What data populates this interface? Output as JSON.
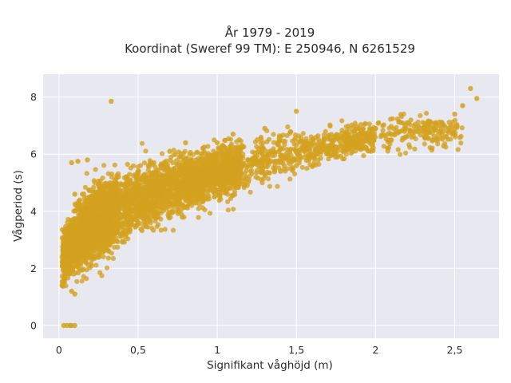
{
  "chart_data": {
    "type": "scatter",
    "title_line1": "År 1979 - 2019",
    "title_line2": "Koordinat (Sweref 99 TM): E 250946, N 6261529",
    "xlabel": "Signifikant våghöjd (m)",
    "ylabel": "Vågperiod (s)",
    "xlim": [
      -0.1,
      2.78
    ],
    "ylim": [
      -0.45,
      8.8
    ],
    "x_ticks": [
      {
        "value": 0,
        "label": "0"
      },
      {
        "value": 0.5,
        "label": "0,5"
      },
      {
        "value": 1,
        "label": "1"
      },
      {
        "value": 1.5,
        "label": "1,5"
      },
      {
        "value": 2,
        "label": "2"
      },
      {
        "value": 2.5,
        "label": "2,5"
      }
    ],
    "y_ticks": [
      {
        "value": 0,
        "label": "0"
      },
      {
        "value": 2,
        "label": "2"
      },
      {
        "value": 4,
        "label": "4"
      },
      {
        "value": 6,
        "label": "6"
      },
      {
        "value": 8,
        "label": "8"
      }
    ],
    "grid": true,
    "legend": "none",
    "marker_color": "#D4A21F",
    "background_color": "#E8E8F0",
    "series": [
      {
        "values": [
          [
            0.03,
            0.0
          ],
          [
            0.05,
            0.0
          ],
          [
            0.07,
            0.0
          ],
          [
            0.08,
            0.0
          ],
          [
            0.1,
            0.0
          ],
          [
            0.02,
            1.4
          ],
          [
            0.04,
            1.8
          ],
          [
            0.06,
            2.3
          ],
          [
            0.08,
            1.2
          ],
          [
            0.1,
            1.1
          ],
          [
            0.07,
            3.0
          ],
          [
            0.1,
            3.6
          ],
          [
            0.1,
            4.6
          ],
          [
            0.08,
            5.7
          ],
          [
            0.12,
            5.75
          ],
          [
            0.18,
            5.8
          ],
          [
            0.15,
            2.5
          ],
          [
            0.2,
            3.2
          ],
          [
            0.25,
            4.0
          ],
          [
            0.3,
            4.6
          ],
          [
            0.33,
            7.85
          ],
          [
            0.35,
            3.7
          ],
          [
            0.4,
            4.5
          ],
          [
            0.45,
            5.1
          ],
          [
            0.5,
            5.4
          ],
          [
            0.55,
            4.2
          ],
          [
            0.6,
            5.7
          ],
          [
            0.7,
            6.1
          ],
          [
            0.8,
            6.4
          ],
          [
            0.9,
            5.0
          ],
          [
            1.0,
            6.4
          ],
          [
            1.0,
            4.7
          ],
          [
            1.1,
            6.7
          ],
          [
            1.2,
            5.1
          ],
          [
            1.3,
            6.9
          ],
          [
            1.4,
            5.4
          ],
          [
            1.5,
            7.5
          ],
          [
            1.5,
            5.6
          ],
          [
            1.7,
            6.1
          ],
          [
            1.8,
            6.6
          ],
          [
            1.9,
            6.2
          ],
          [
            2.0,
            6.9
          ],
          [
            2.1,
            6.5
          ],
          [
            2.2,
            7.1
          ],
          [
            2.3,
            6.8
          ],
          [
            2.4,
            7.0
          ],
          [
            2.5,
            7.4
          ],
          [
            2.55,
            7.7
          ],
          [
            2.6,
            8.3
          ],
          [
            2.64,
            7.95
          ]
        ]
      }
    ]
  }
}
